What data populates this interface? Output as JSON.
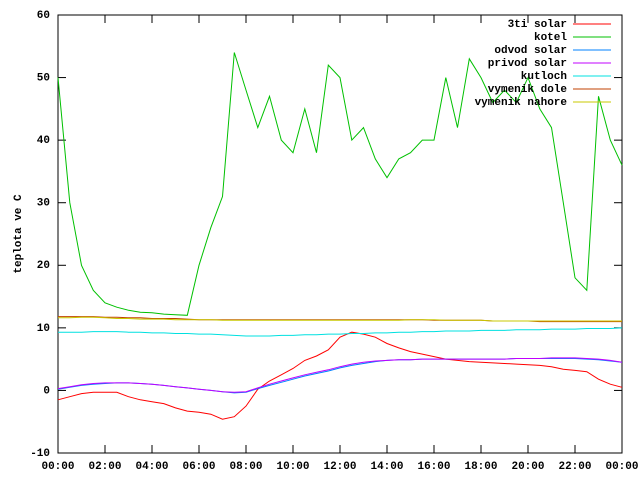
{
  "chart_data": {
    "type": "line",
    "ylabel": "teplota ve C",
    "legend": "top right",
    "x": [
      0,
      0.5,
      1,
      1.5,
      2,
      2.5,
      3,
      3.5,
      4,
      4.5,
      5,
      5.5,
      6,
      6.5,
      7,
      7.5,
      8,
      8.5,
      9,
      9.5,
      10,
      10.5,
      11,
      11.5,
      12,
      12.5,
      13,
      13.5,
      14,
      14.5,
      15,
      15.5,
      16,
      16.5,
      17,
      17.5,
      18,
      18.5,
      19,
      19.5,
      20,
      20.5,
      21,
      21.5,
      22,
      22.5,
      23,
      23.5,
      24
    ],
    "xlim": [
      0,
      24
    ],
    "xticks": [
      {
        "value": 0,
        "label": "00:00"
      },
      {
        "value": 2,
        "label": "02:00"
      },
      {
        "value": 4,
        "label": "04:00"
      },
      {
        "value": 6,
        "label": "06:00"
      },
      {
        "value": 8,
        "label": "08:00"
      },
      {
        "value": 10,
        "label": "10:00"
      },
      {
        "value": 12,
        "label": "12:00"
      },
      {
        "value": 14,
        "label": "14:00"
      },
      {
        "value": 16,
        "label": "16:00"
      },
      {
        "value": 18,
        "label": "18:00"
      },
      {
        "value": 20,
        "label": "20:00"
      },
      {
        "value": 22,
        "label": "22:00"
      },
      {
        "value": 24,
        "label": "00:00"
      }
    ],
    "ylim": [
      -10,
      60
    ],
    "yticks": [
      -10,
      0,
      10,
      20,
      30,
      40,
      50,
      60
    ],
    "series": [
      {
        "name": "3ti solar",
        "color": "#ff0000",
        "values": [
          -1.5,
          -1,
          -0.5,
          -0.3,
          -0.3,
          -0.3,
          -1,
          -1.5,
          -1.8,
          -2.1,
          -2.8,
          -3.3,
          -3.5,
          -3.8,
          -4.6,
          -4.2,
          -2.5,
          0.2,
          1.5,
          2.5,
          3.5,
          4.8,
          5.5,
          6.5,
          8.5,
          9.3,
          9,
          8.5,
          7.5,
          6.8,
          6.2,
          5.8,
          5.4,
          5,
          4.8,
          4.6,
          4.5,
          4.4,
          4.3,
          4.2,
          4.1,
          4,
          3.8,
          3.4,
          3.2,
          3,
          1.8,
          1,
          0.5
        ]
      },
      {
        "name": "kotel",
        "color": "#00c000",
        "values": [
          50,
          30,
          20,
          16,
          14,
          13.3,
          12.8,
          12.5,
          12.4,
          12.2,
          12.1,
          12,
          20,
          26,
          31,
          54,
          48,
          42,
          47,
          40,
          38,
          45,
          38,
          52,
          50,
          40,
          42,
          37,
          34,
          37,
          38,
          40,
          40,
          50,
          42,
          53,
          50,
          46,
          48,
          46,
          50,
          45,
          42,
          30,
          18,
          16,
          47,
          40,
          36
        ]
      },
      {
        "name": "odvod solar",
        "color": "#0080ff",
        "values": [
          0.2,
          0.5,
          0.8,
          1,
          1.1,
          1.2,
          1.2,
          1.1,
          1,
          0.8,
          0.6,
          0.4,
          0.2,
          0,
          -0.2,
          -0.4,
          -0.3,
          0.3,
          0.8,
          1.3,
          1.8,
          2.3,
          2.7,
          3.1,
          3.6,
          4,
          4.3,
          4.6,
          4.8,
          4.9,
          4.9,
          5,
          5,
          5,
          5,
          5,
          5,
          5,
          5,
          5.1,
          5.1,
          5.1,
          5.1,
          5.1,
          5.1,
          5,
          4.9,
          4.7,
          4.5
        ]
      },
      {
        "name": "privod solar",
        "color": "#c000ff",
        "values": [
          0.3,
          0.6,
          0.9,
          1.1,
          1.2,
          1.2,
          1.2,
          1.1,
          1,
          0.8,
          0.6,
          0.4,
          0.2,
          0,
          -0.2,
          -0.3,
          -0.2,
          0.4,
          1,
          1.5,
          2,
          2.5,
          2.9,
          3.3,
          3.8,
          4.2,
          4.5,
          4.7,
          4.8,
          4.9,
          4.9,
          5,
          5,
          5,
          5,
          5,
          5,
          5,
          5,
          5.1,
          5.1,
          5.1,
          5.2,
          5.2,
          5.2,
          5.1,
          5,
          4.8,
          4.5
        ]
      },
      {
        "name": "kutloch",
        "color": "#00e0e0",
        "values": [
          9.3,
          9.3,
          9.3,
          9.4,
          9.4,
          9.4,
          9.3,
          9.3,
          9.2,
          9.2,
          9.1,
          9.1,
          9,
          9,
          8.9,
          8.8,
          8.7,
          8.7,
          8.7,
          8.8,
          8.8,
          8.9,
          8.9,
          9,
          9,
          9.1,
          9.1,
          9.2,
          9.2,
          9.3,
          9.3,
          9.4,
          9.4,
          9.5,
          9.5,
          9.5,
          9.6,
          9.6,
          9.6,
          9.7,
          9.7,
          9.7,
          9.8,
          9.8,
          9.8,
          9.9,
          9.9,
          9.9,
          10
        ]
      },
      {
        "name": "vymenik dole",
        "color": "#c04000",
        "values": [
          11.8,
          11.8,
          11.8,
          11.8,
          11.7,
          11.7,
          11.6,
          11.6,
          11.5,
          11.5,
          11.5,
          11.4,
          11.3,
          11.3,
          11.3,
          11.3,
          11.3,
          11.3,
          11.3,
          11.3,
          11.3,
          11.3,
          11.3,
          11.3,
          11.3,
          11.3,
          11.3,
          11.3,
          11.3,
          11.3,
          11.3,
          11.3,
          11.2,
          11.2,
          11.2,
          11.2,
          11.2,
          11.1,
          11.1,
          11.1,
          11.1,
          11,
          11,
          11,
          11,
          11,
          11,
          11,
          11
        ]
      },
      {
        "name": "vymenik nahore",
        "color": "#c8c800",
        "values": [
          11.6,
          11.6,
          11.7,
          11.7,
          11.6,
          11.5,
          11.5,
          11.4,
          11.4,
          11.4,
          11.3,
          11.3,
          11.3,
          11.3,
          11.2,
          11.2,
          11.2,
          11.2,
          11.2,
          11.2,
          11.2,
          11.2,
          11.2,
          11.2,
          11.2,
          11.2,
          11.2,
          11.2,
          11.2,
          11.2,
          11.3,
          11.3,
          11.3,
          11.2,
          11.2,
          11.2,
          11.2,
          11.1,
          11.1,
          11.1,
          11.1,
          11.1,
          11.1,
          11.1,
          11.1,
          11.1,
          11.1,
          11.1,
          11.1
        ]
      }
    ]
  }
}
